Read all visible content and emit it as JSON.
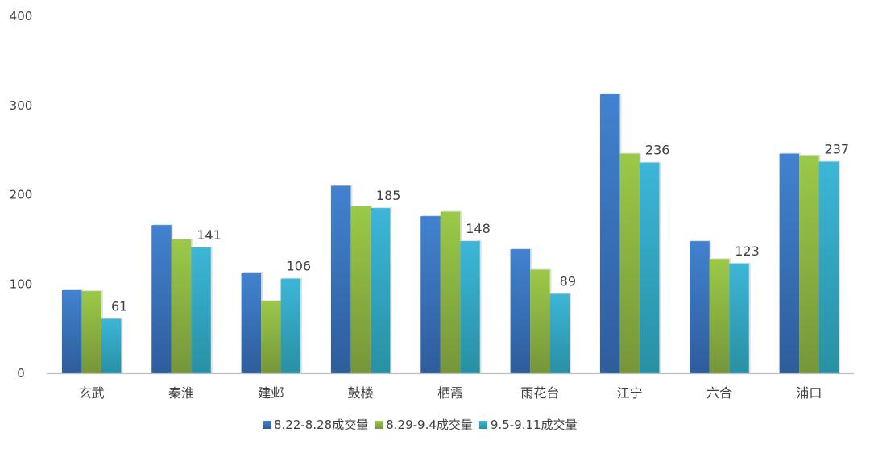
{
  "chart_data": {
    "type": "bar",
    "categories": [
      "玄武",
      "秦淮",
      "建邺",
      "鼓楼",
      "栖霞",
      "雨花台",
      "江宁",
      "六合",
      "浦口"
    ],
    "series": [
      {
        "name": "8.22-8.28成交量",
        "values": [
          93,
          166,
          112,
          210,
          176,
          139,
          313,
          148,
          246
        ],
        "color_top": "#4282D0",
        "color_bottom": "#2E5D9B"
      },
      {
        "name": "8.29-9.4成交量",
        "values": [
          92,
          150,
          81,
          187,
          181,
          116,
          246,
          128,
          244
        ],
        "color_top": "#9BC948",
        "color_bottom": "#76963A"
      },
      {
        "name": "9.5-9.11成交量",
        "values": [
          61,
          141,
          106,
          185,
          148,
          89,
          236,
          123,
          237
        ],
        "color_top": "#3DB6D8",
        "color_bottom": "#2890A4"
      }
    ],
    "data_labels": [
      "61",
      "141",
      "106",
      "185",
      "148",
      "89",
      "236",
      "123",
      "237"
    ],
    "ylim": [
      0,
      400
    ],
    "yticks": [
      "0",
      "100",
      "200",
      "300",
      "400"
    ],
    "grid": false,
    "legend_position": "bottom"
  }
}
